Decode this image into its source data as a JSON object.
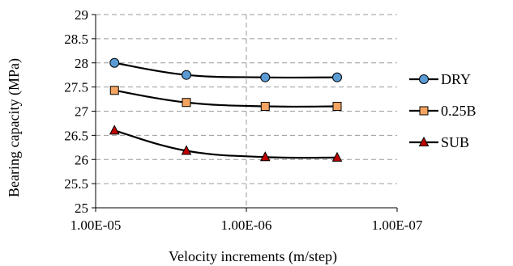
{
  "chart_data": {
    "type": "line",
    "title": "",
    "xlabel": "Velocity increments (m/step)",
    "ylabel": "Bearing capacity  (MPa)",
    "x_scale": "log",
    "x_reversed": true,
    "xlim": [
      1e-05,
      1e-07
    ],
    "ylim": [
      25,
      29
    ],
    "x_tick_values": [
      1e-05,
      1e-06,
      1e-07
    ],
    "x_tick_labels": [
      "1.00E-05",
      "1.00E-06",
      "1.00E-07"
    ],
    "y_tick_values": [
      25,
      25.5,
      26,
      26.5,
      27,
      27.5,
      28,
      28.5,
      29
    ],
    "y_tick_labels": [
      "25",
      "25.5",
      "26",
      "26.5",
      "27",
      "27.5",
      "28",
      "28.5",
      "29"
    ],
    "grid": "horizontal dashed at y ticks, vertical dashed at 1.00E-06",
    "legend_position": "right",
    "series": [
      {
        "name": "DRY",
        "marker": "circle",
        "marker_color": "#5b9bd5",
        "x": [
          7.5e-06,
          2.5e-06,
          7.5e-07,
          2.5e-07
        ],
        "y": [
          28.0,
          27.75,
          27.7,
          27.7
        ]
      },
      {
        "name": "0.25B",
        "marker": "square",
        "marker_color": "#f4a460",
        "x": [
          7.5e-06,
          2.5e-06,
          7.5e-07,
          2.5e-07
        ],
        "y": [
          27.43,
          27.18,
          27.1,
          27.1
        ]
      },
      {
        "name": "SUB",
        "marker": "triangle",
        "marker_color": "#c00000",
        "x": [
          7.5e-06,
          2.5e-06,
          7.5e-07,
          2.5e-07
        ],
        "y": [
          26.6,
          26.18,
          26.05,
          26.04
        ]
      }
    ]
  }
}
